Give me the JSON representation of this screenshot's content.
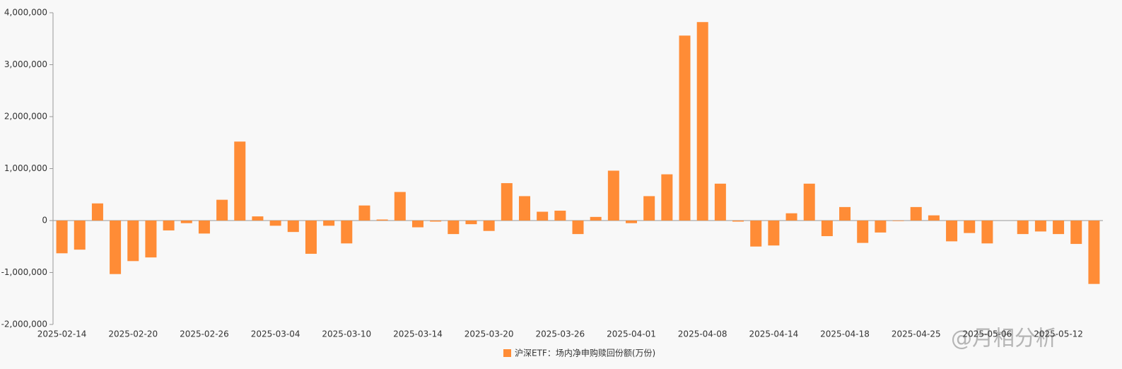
{
  "chart_data": {
    "type": "bar",
    "categories": [
      "2025-02-14",
      null,
      null,
      null,
      "2025-02-20",
      null,
      null,
      null,
      "2025-02-26",
      null,
      null,
      null,
      "2025-03-04",
      null,
      null,
      null,
      "2025-03-10",
      null,
      null,
      null,
      "2025-03-14",
      null,
      null,
      null,
      "2025-03-20",
      null,
      null,
      null,
      "2025-03-26",
      null,
      null,
      null,
      "2025-04-01",
      null,
      null,
      null,
      "2025-04-08",
      null,
      null,
      null,
      "2025-04-14",
      null,
      null,
      null,
      "2025-04-18",
      null,
      null,
      null,
      "2025-04-25",
      null,
      null,
      null,
      "2025-05-06",
      null,
      null,
      null,
      "2025-05-12",
      null,
      null
    ],
    "series": [
      {
        "name": "沪深ETF：场内净申购赎回份额(万份)",
        "color": "#ff8c36",
        "values": [
          -630000,
          -560000,
          330000,
          -1030000,
          -780000,
          -710000,
          -190000,
          -50000,
          -250000,
          400000,
          1520000,
          80000,
          -100000,
          -220000,
          -640000,
          -100000,
          -440000,
          290000,
          20000,
          550000,
          -130000,
          -20000,
          -260000,
          -70000,
          -200000,
          720000,
          470000,
          170000,
          190000,
          -260000,
          70000,
          960000,
          -50000,
          470000,
          890000,
          3560000,
          3820000,
          710000,
          -20000,
          -500000,
          -480000,
          140000,
          710000,
          -300000,
          260000,
          -430000,
          -230000,
          -10000,
          260000,
          100000,
          -400000,
          -240000,
          -440000,
          0,
          -260000,
          -210000,
          -260000,
          -450000,
          -1220000
        ]
      }
    ],
    "ylim": [
      -2000000,
      4000000
    ],
    "yticks": [
      {
        "value": -2000000,
        "label": "-2,000,000"
      },
      {
        "value": -1000000,
        "label": "-1,000,000"
      },
      0,
      {
        "value": 1000000,
        "label": "1,000,000"
      },
      {
        "value": 2000000,
        "label": "2,000,000"
      },
      {
        "value": 3000000,
        "label": "3,000,000"
      },
      {
        "value": 4000000,
        "label": "4,000,000"
      }
    ],
    "grid": false,
    "watermark": "@月相分析"
  }
}
